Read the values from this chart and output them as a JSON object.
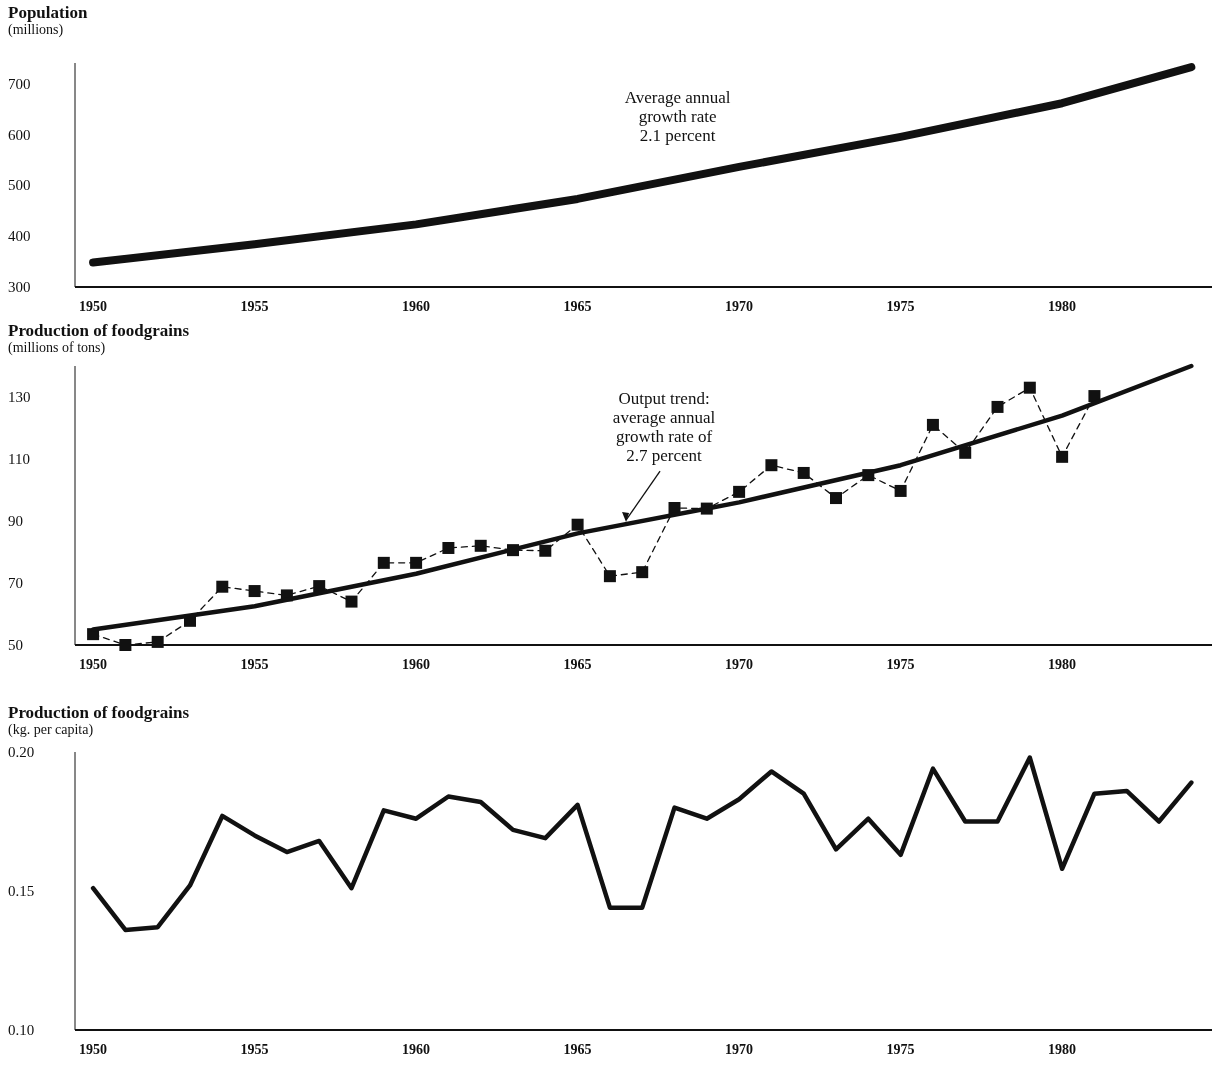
{
  "chart_data": [
    {
      "type": "line",
      "title": "Population",
      "ylabel": "(millions)",
      "annotations": [
        "Average annual\ngrowth rate\n2.1 percent"
      ],
      "xlim": [
        1949.44,
        1984.64
      ],
      "xticks": [
        1950,
        1955,
        1960,
        1965,
        1970,
        1975,
        1980
      ],
      "ylim": [
        300,
        740
      ],
      "yticks": [
        300,
        400,
        500,
        600,
        700
      ],
      "marker": "none",
      "series": [
        {
          "color": "#111111",
          "x": [
            1950,
            1955,
            1960,
            1965,
            1970,
            1975,
            1980,
            1984
          ],
          "values": [
            348,
            384,
            423,
            473,
            536,
            595,
            661,
            732
          ]
        }
      ]
    },
    {
      "type": "line",
      "title": "Production of foodgrains",
      "ylabel": "(millions of tons)",
      "annotations": [
        {
          "text": "Output trend:\naverage annual\ngrowth rate of\n2.7 percent",
          "x": 1966.5,
          "y": 89
        }
      ],
      "xlim": [
        1949.44,
        1984.64
      ],
      "xticks": [
        1950,
        1955,
        1960,
        1965,
        1970,
        1975,
        1980
      ],
      "ylim": [
        50,
        140
      ],
      "yticks": [
        50,
        70,
        90,
        110,
        130
      ],
      "series": [
        {
          "color": "#111111",
          "marker": "square",
          "line_style": "dashed",
          "x": [
            1950,
            1951,
            1952,
            1953,
            1954,
            1955,
            1956,
            1957,
            1958,
            1959,
            1960,
            1961,
            1962,
            1963,
            1964,
            1965,
            1966,
            1967,
            1968,
            1969,
            1970,
            1971,
            1972,
            1973,
            1974,
            1975,
            1976,
            1977,
            1978,
            1979,
            1980,
            1981
          ],
          "values": [
            53.5,
            50,
            51,
            57.8,
            68.8,
            67.4,
            66,
            69,
            64,
            76.5,
            76.5,
            81.3,
            82,
            80.6,
            80.4,
            88.8,
            72.2,
            73.5,
            94.2,
            94,
            99.4,
            108,
            105.5,
            97.4,
            104.8,
            99.7,
            121,
            112,
            126.8,
            133,
            110.7,
            130.3
          ]
        },
        {
          "color": "#111111",
          "marker": "none",
          "line_style": "solid",
          "x": [
            1950,
            1955,
            1960,
            1965,
            1970,
            1975,
            1980,
            1984
          ],
          "values": [
            55,
            62.5,
            73,
            86,
            96,
            108,
            124,
            140
          ]
        }
      ]
    },
    {
      "type": "line",
      "title": "Production of foodgrains",
      "ylabel": "(kg. per capita)",
      "xlim": [
        1949.44,
        1984.64
      ],
      "xticks": [
        1950,
        1955,
        1960,
        1965,
        1970,
        1975,
        1980
      ],
      "ylim": [
        0.1,
        0.2
      ],
      "yticks": [
        {
          "value": 0.1,
          "label": "0.10"
        },
        0.15,
        {
          "value": 0.2,
          "label": "0.20"
        }
      ],
      "marker": "none",
      "series": [
        {
          "color": "#111111",
          "x": [
            1950,
            1951,
            1952,
            1953,
            1954,
            1955,
            1956,
            1957,
            1958,
            1959,
            1960,
            1961,
            1962,
            1963,
            1964,
            1965,
            1966,
            1967,
            1968,
            1969,
            1970,
            1971,
            1972,
            1973,
            1974,
            1975,
            1976,
            1977,
            1978,
            1979,
            1980,
            1981,
            1982,
            1983,
            1984
          ],
          "values": [
            0.151,
            0.136,
            0.137,
            0.152,
            0.177,
            0.17,
            0.164,
            0.168,
            0.151,
            0.179,
            0.176,
            0.184,
            0.182,
            0.172,
            0.169,
            0.181,
            0.144,
            0.144,
            0.18,
            0.176,
            0.183,
            0.193,
            0.185,
            0.165,
            0.176,
            0.163,
            0.194,
            0.175,
            0.175,
            0.198,
            0.158,
            0.185,
            0.186,
            0.175,
            0.189
          ]
        }
      ]
    }
  ]
}
